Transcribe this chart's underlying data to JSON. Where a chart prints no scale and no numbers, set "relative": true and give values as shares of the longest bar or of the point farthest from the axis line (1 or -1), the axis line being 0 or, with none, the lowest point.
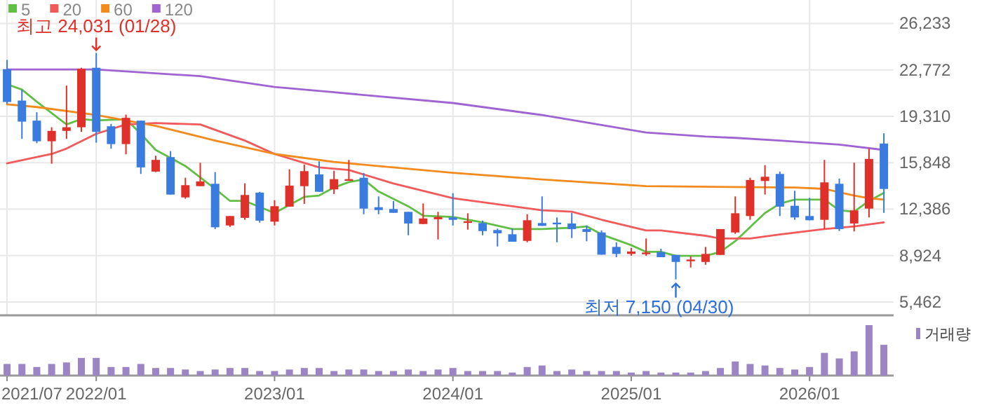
{
  "chart_data": [
    {
      "type": "candlestick",
      "x": [
        "2021-07",
        "2021-08",
        "2021-09",
        "2021-10",
        "2021-11",
        "2021-12",
        "2022-01",
        "2022-02",
        "2022-03",
        "2022-04",
        "2022-05",
        "2022-06",
        "2022-07",
        "2022-08",
        "2022-09",
        "2022-10",
        "2022-11",
        "2022-12",
        "2023-01",
        "2023-02",
        "2023-03",
        "2023-04",
        "2023-05",
        "2023-06",
        "2023-07",
        "2023-08",
        "2023-09",
        "2023-10",
        "2023-11",
        "2023-12",
        "2024-01",
        "2024-02",
        "2024-03",
        "2024-04",
        "2024-05",
        "2024-06",
        "2024-07",
        "2024-08",
        "2024-09",
        "2024-10",
        "2024-11",
        "2024-12",
        "2025-01",
        "2025-02",
        "2025-03",
        "2025-04",
        "2025-05",
        "2025-06",
        "2025-07",
        "2025-08",
        "2025-09",
        "2025-10",
        "2025-11",
        "2025-12",
        "2026-01",
        "2026-02",
        "2026-03",
        "2026-04",
        "2026-05",
        "2026-06"
      ],
      "ohlc": [
        [
          22823,
          23514,
          20240,
          20376
        ],
        [
          20480,
          21286,
          17625,
          18912
        ],
        [
          18984,
          19612,
          17311,
          17447
        ],
        [
          17447,
          18493,
          15775,
          18221
        ],
        [
          18221,
          21599,
          17625,
          18493
        ],
        [
          18493,
          22928,
          18148,
          22855
        ],
        [
          22928,
          24031,
          17343,
          18148
        ],
        [
          18566,
          18744,
          16892,
          17238
        ],
        [
          17238,
          19434,
          16474,
          19194
        ],
        [
          18984,
          18984,
          15010,
          15501
        ],
        [
          15187,
          16369,
          15146,
          16056
        ],
        [
          16265,
          16714,
          13472,
          13472
        ],
        [
          13263,
          14727,
          13158,
          14173
        ],
        [
          14100,
          15846,
          14100,
          14455
        ],
        [
          14277,
          15146,
          10899,
          11035
        ],
        [
          11170,
          11872,
          11066,
          11872
        ],
        [
          11736,
          14309,
          11590,
          13441
        ],
        [
          13618,
          13681,
          11380,
          11527
        ],
        [
          11453,
          13053,
          11170,
          12604
        ],
        [
          12572,
          15355,
          12572,
          14142
        ],
        [
          14100,
          15710,
          12782,
          15219
        ],
        [
          14979,
          15951,
          13681,
          13681
        ],
        [
          13859,
          15251,
          13514,
          14622
        ],
        [
          14518,
          16056,
          14518,
          14622
        ],
        [
          14727,
          15083,
          12008,
          12426
        ],
        [
          12531,
          13336,
          12008,
          12321
        ],
        [
          12394,
          12991,
          12113,
          12113
        ],
        [
          12185,
          12185,
          10438,
          11317
        ],
        [
          11276,
          12813,
          11276,
          11694
        ],
        [
          11631,
          12185,
          10125,
          11799
        ],
        [
          11767,
          13577,
          11170,
          11590
        ],
        [
          11380,
          12080,
          10857,
          11485
        ],
        [
          11349,
          11527,
          10438,
          10752
        ],
        [
          10826,
          10930,
          9602,
          10585
        ],
        [
          10512,
          10930,
          9958,
          9958
        ],
        [
          10020,
          12008,
          9916,
          11558
        ],
        [
          11349,
          13336,
          11139,
          11139
        ],
        [
          11380,
          11767,
          9916,
          11317
        ],
        [
          11317,
          12113,
          10229,
          10899
        ],
        [
          10899,
          11170,
          9989,
          10690
        ],
        [
          10648,
          10794,
          8993,
          8993
        ],
        [
          9570,
          9916,
          8807,
          9047
        ],
        [
          9047,
          9497,
          8911,
          9225
        ],
        [
          9079,
          10198,
          8911,
          9152
        ],
        [
          9183,
          9434,
          8807,
          8807
        ],
        [
          8974,
          8974,
          7150,
          8451
        ],
        [
          8524,
          8869,
          8033,
          8629
        ],
        [
          8451,
          9570,
          8242,
          9047
        ],
        [
          8974,
          10899,
          8974,
          10899
        ],
        [
          10648,
          13336,
          10544,
          12080
        ],
        [
          11872,
          14727,
          11590,
          14560
        ],
        [
          14487,
          15669,
          13472,
          14800
        ],
        [
          15010,
          15187,
          11872,
          12572
        ],
        [
          12636,
          13754,
          11590,
          11767
        ],
        [
          11872,
          13231,
          11558,
          11558
        ],
        [
          11590,
          16056,
          10899,
          14382
        ],
        [
          14277,
          14664,
          10752,
          10899
        ],
        [
          11317,
          15846,
          10721,
          12290
        ],
        [
          12426,
          16892,
          11767,
          16129
        ],
        [
          17279,
          18043,
          12113,
          13891
        ]
      ],
      "colors": [
        "#3a7be0",
        "#3a7be0",
        "#3a7be0",
        "#e0302a",
        "#e0302a",
        "#e0302a",
        "#3a7be0",
        "#3a7be0",
        "#e0302a",
        "#3a7be0",
        "#e0302a",
        "#3a7be0",
        "#e0302a",
        "#e0302a",
        "#3a7be0",
        "#e0302a",
        "#e0302a",
        "#3a7be0",
        "#e0302a",
        "#e0302a",
        "#e0302a",
        "#3a7be0",
        "#e0302a",
        "#e0302a",
        "#3a7be0",
        "#3a7be0",
        "#3a7be0",
        "#3a7be0",
        "#e0302a",
        "#e0302a",
        "#3a7be0",
        "#e0302a",
        "#3a7be0",
        "#3a7be0",
        "#3a7be0",
        "#e0302a",
        "#3a7be0",
        "#3a7be0",
        "#3a7be0",
        "#3a7be0",
        "#3a7be0",
        "#3a7be0",
        "#e0302a",
        "#e0302a",
        "#3a7be0",
        "#3a7be0",
        "#e0302a",
        "#e0302a",
        "#e0302a",
        "#e0302a",
        "#e0302a",
        "#e0302a",
        "#3a7be0",
        "#3a7be0",
        "#3a7be0",
        "#e0302a",
        "#3a7be0",
        "#e0302a",
        "#e0302a",
        "#3a7be0"
      ],
      "series": [
        {
          "name": "5",
          "type": "line",
          "color": "#62bf45",
          "x": [
            "2021-07",
            "2021-08",
            "2021-09",
            "2021-11",
            "2021-12",
            "2022-01",
            "2022-03",
            "2022-04",
            "2022-05",
            "2022-07",
            "2022-09",
            "2022-10",
            "2022-11",
            "2023-01",
            "2023-03",
            "2023-04",
            "2023-05",
            "2023-06",
            "2023-07",
            "2023-08",
            "2023-10",
            "2023-11",
            "2024-01",
            "2024-03",
            "2024-05",
            "2024-07",
            "2024-09",
            "2024-10",
            "2024-11",
            "2025-01",
            "2025-02",
            "2025-03",
            "2025-04",
            "2025-06",
            "2025-07",
            "2025-08",
            "2025-10",
            "2025-11",
            "2025-12",
            "2026-02",
            "2026-03",
            "2026-04",
            "2026-05",
            "2026-06"
          ],
          "values": [
            21700,
            21300,
            20400,
            18700,
            19100,
            19000,
            19100,
            18000,
            16800,
            15600,
            13900,
            13000,
            13000,
            12100,
            13300,
            13400,
            14000,
            14400,
            14600,
            13700,
            12600,
            11900,
            11800,
            11400,
            10900,
            10900,
            11000,
            11100,
            10500,
            9700,
            9200,
            9200,
            8900,
            8900,
            9200,
            10000,
            12100,
            12800,
            13100,
            13100,
            12300,
            12200,
            13000,
            13600
          ]
        },
        {
          "name": "20",
          "type": "line",
          "color": "#f05a5a",
          "x": [
            "2021-07",
            "2021-10",
            "2021-11",
            "2022-01",
            "2022-03",
            "2022-05",
            "2022-08",
            "2022-11",
            "2023-01",
            "2023-04",
            "2023-06",
            "2023-09",
            "2024-01",
            "2024-07",
            "2024-09",
            "2024-11",
            "2025-02",
            "2025-03",
            "2025-06",
            "2025-07",
            "2025-09",
            "2025-11",
            "2026-02",
            "2026-04",
            "2026-06"
          ],
          "values": [
            15800,
            16500,
            16900,
            18000,
            18700,
            18800,
            18700,
            17500,
            16500,
            15500,
            15300,
            14300,
            13200,
            12300,
            12200,
            11600,
            10800,
            10800,
            10400,
            10200,
            10200,
            10500,
            10900,
            11100,
            11400
          ]
        },
        {
          "name": "60",
          "type": "line",
          "color": "#f28b1e",
          "x": [
            "2021-07",
            "2021-09",
            "2022-01",
            "2022-05",
            "2022-09",
            "2023-01",
            "2023-05",
            "2024-01",
            "2024-07",
            "2025-02",
            "2025-12",
            "2026-02",
            "2026-04",
            "2026-05",
            "2026-06"
          ],
          "values": [
            20200,
            20000,
            19400,
            18600,
            17500,
            16500,
            15900,
            15100,
            14600,
            14100,
            14000,
            13900,
            13400,
            13200,
            13100
          ]
        },
        {
          "name": "120",
          "type": "line",
          "color": "#a064d2",
          "x": [
            "2021-07",
            "2022-01",
            "2022-08",
            "2023-01",
            "2023-05",
            "2024-01",
            "2024-07",
            "2025-02",
            "2025-06",
            "2025-08",
            "2025-11",
            "2026-03",
            "2026-06"
          ],
          "values": [
            22800,
            22800,
            22300,
            21500,
            21100,
            20300,
            19400,
            18100,
            17800,
            17700,
            17500,
            17200,
            16800
          ]
        }
      ],
      "xlim": [
        "2021-06-17",
        "2026-06-21"
      ],
      "xticks": [
        {
          "value": "2021-07",
          "label": null
        },
        {
          "value": "2022-01",
          "label": null
        },
        {
          "value": "2023-01",
          "label": null
        },
        {
          "value": "2024-01",
          "label": null
        },
        {
          "value": "2025-01",
          "label": null
        },
        {
          "value": "2026-01",
          "label": null
        }
      ],
      "ylim": [
        4470,
        27980
      ],
      "yticks": [
        {
          "value": 5462,
          "label": "5,462"
        },
        {
          "value": 8924,
          "label": "8,924"
        },
        {
          "value": 12386,
          "label": "12,386"
        },
        {
          "value": 15848,
          "label": "15,848"
        },
        {
          "value": 19310,
          "label": "19,310"
        },
        {
          "value": 22772,
          "label": "22,772"
        },
        {
          "value": 26233,
          "label": "26,233"
        }
      ],
      "grid": true,
      "tick_labels": "y",
      "legend": "top left",
      "annotations": [
        {
          "text": "최고 24,031 (01/28)",
          "x": "2022-01",
          "y": 24031
        },
        {
          "text": "최저 7,150 (04/30)",
          "x": "2025-04",
          "y": 7150
        }
      ]
    },
    {
      "type": "bar",
      "relative": true,
      "x": [
        "2021-07",
        "2021-08",
        "2021-09",
        "2021-10",
        "2021-11",
        "2021-12",
        "2022-01",
        "2022-02",
        "2022-03",
        "2022-04",
        "2022-05",
        "2022-06",
        "2022-07",
        "2022-08",
        "2022-09",
        "2022-10",
        "2022-11",
        "2022-12",
        "2023-01",
        "2023-02",
        "2023-03",
        "2023-04",
        "2023-05",
        "2023-06",
        "2023-07",
        "2023-08",
        "2023-09",
        "2023-10",
        "2023-11",
        "2023-12",
        "2024-01",
        "2024-02",
        "2024-03",
        "2024-04",
        "2024-05",
        "2024-06",
        "2024-07",
        "2024-08",
        "2024-09",
        "2024-10",
        "2024-11",
        "2024-12",
        "2025-01",
        "2025-02",
        "2025-03",
        "2025-04",
        "2025-05",
        "2025-06",
        "2025-07",
        "2025-08",
        "2025-09",
        "2025-10",
        "2025-11",
        "2025-12",
        "2026-01",
        "2026-02",
        "2026-03",
        "2026-04",
        "2026-05",
        "2026-06"
      ],
      "series": [
        {
          "name": "거래량",
          "color": "#9b85c4",
          "values": [
            0.23,
            0.23,
            0.17,
            0.23,
            0.26,
            0.35,
            0.35,
            0.17,
            0.17,
            0.23,
            0.15,
            0.15,
            0.12,
            0.09,
            0.12,
            0.15,
            0.15,
            0.09,
            0.09,
            0.12,
            0.15,
            0.15,
            0.09,
            0.12,
            0.12,
            0.09,
            0.09,
            0.12,
            0.09,
            0.12,
            0.15,
            0.09,
            0.09,
            0.09,
            0.06,
            0.17,
            0.2,
            0.09,
            0.12,
            0.09,
            0.09,
            0.09,
            0.06,
            0.09,
            0.06,
            0.06,
            0.06,
            0.09,
            0.15,
            0.28,
            0.23,
            0.2,
            0.15,
            0.12,
            0.17,
            0.45,
            0.34,
            0.48,
            1,
            0.61
          ]
        }
      ],
      "xlim": [
        "2021-06-17",
        "2026-06-21"
      ],
      "xticks": [
        {
          "value": "2021-07",
          "label": "2021/07"
        },
        {
          "value": "2022-01",
          "label": "2022/01"
        },
        {
          "value": "2023-01",
          "label": "2023/01"
        },
        {
          "value": "2024-01",
          "label": "2024/01"
        },
        {
          "value": "2025-01",
          "label": "2025/01"
        },
        {
          "value": "2026-01",
          "label": "2026/01"
        }
      ],
      "tick_labels": "x",
      "legend": "top right"
    }
  ]
}
